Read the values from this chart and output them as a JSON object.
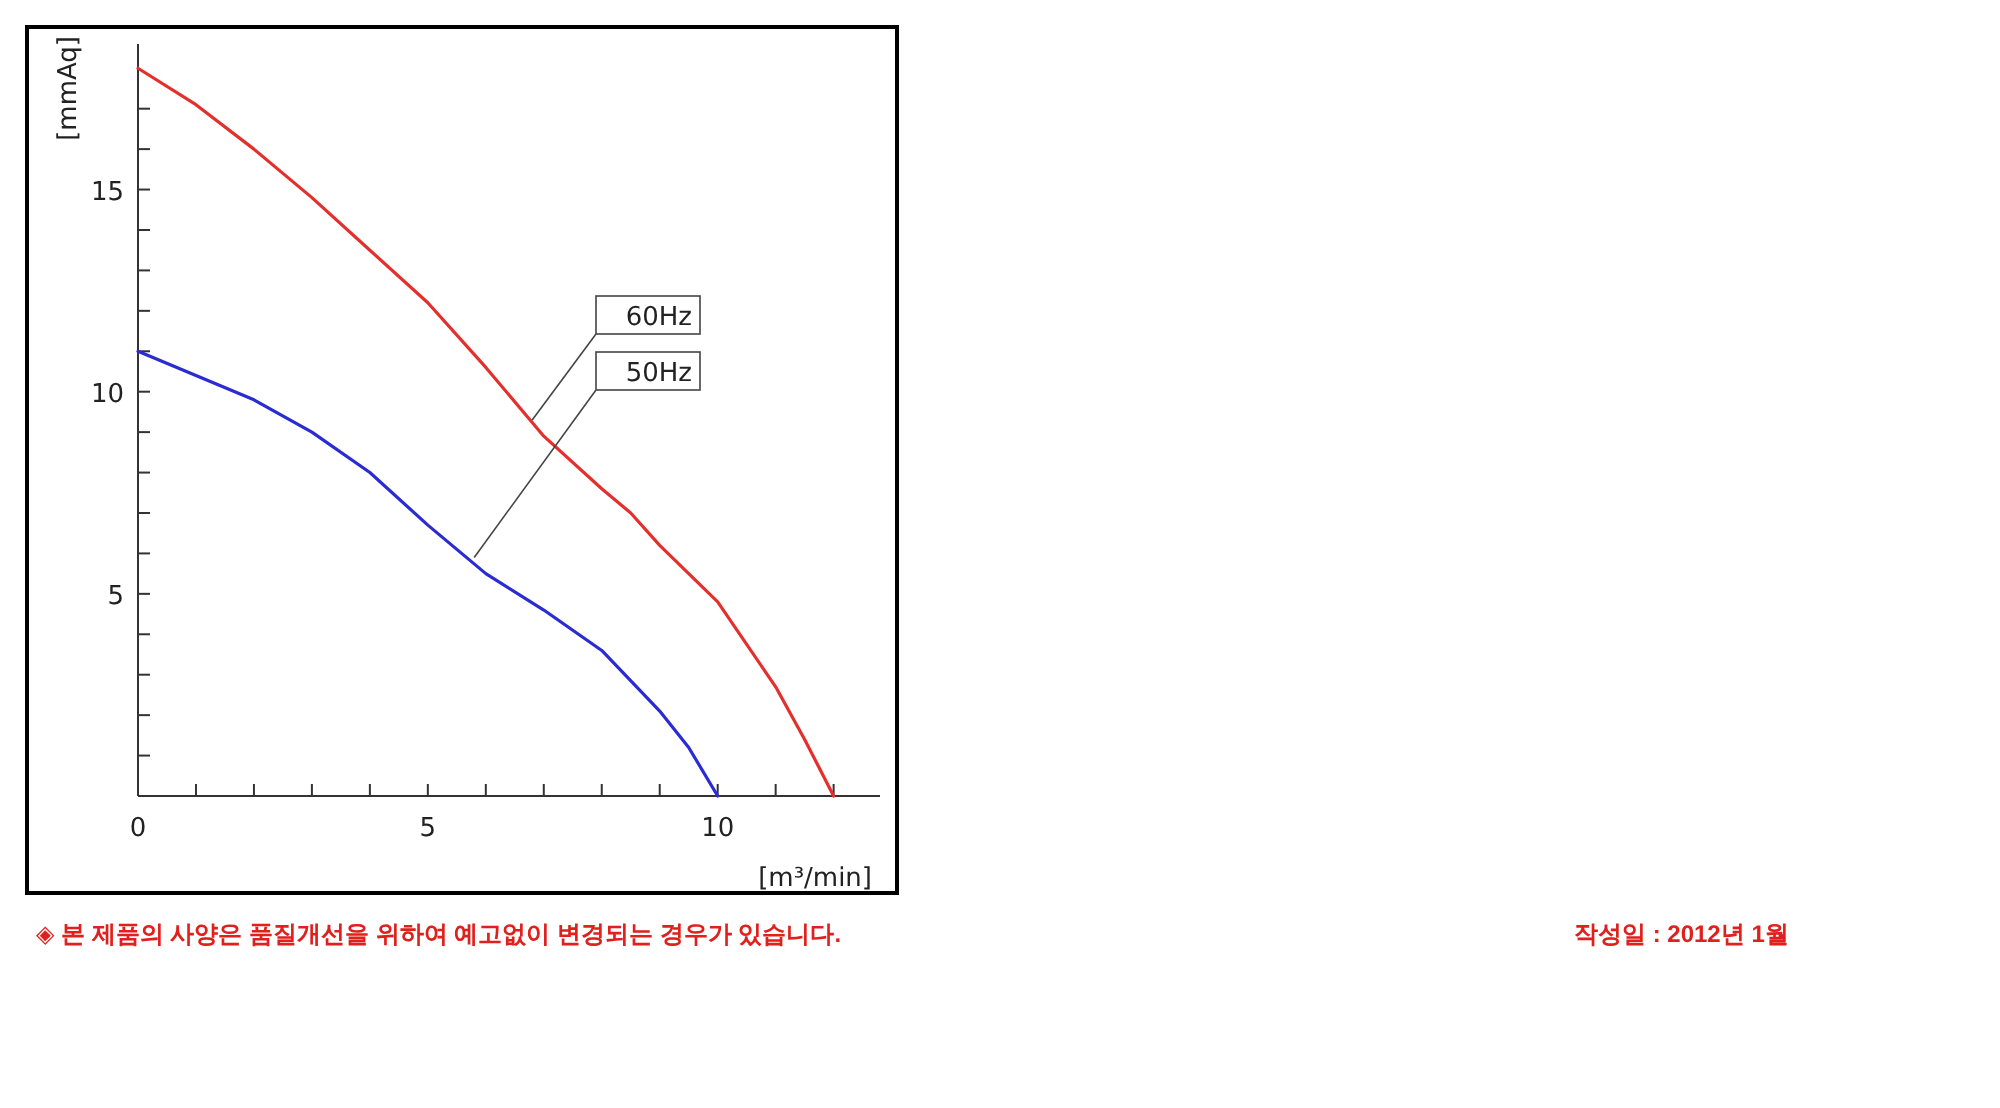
{
  "chart_data": {
    "type": "line",
    "xlabel": "[m³/min]",
    "ylabel": "[mmAq]",
    "xlim": [
      0,
      12.8
    ],
    "ylim": [
      0,
      18.6
    ],
    "xticks": [
      0,
      {
        "value": 1,
        "label": null
      },
      {
        "value": 2,
        "label": null
      },
      {
        "value": 3,
        "label": null
      },
      {
        "value": 4,
        "label": null
      },
      5,
      {
        "value": 6,
        "label": null
      },
      {
        "value": 7,
        "label": null
      },
      {
        "value": 8,
        "label": null
      },
      {
        "value": 9,
        "label": null
      },
      10,
      {
        "value": 11,
        "label": null
      },
      {
        "value": 12,
        "label": null
      }
    ],
    "yticks": [
      {
        "value": 1,
        "label": null
      },
      {
        "value": 2,
        "label": null
      },
      {
        "value": 3,
        "label": null
      },
      {
        "value": 4,
        "label": null
      },
      5,
      {
        "value": 6,
        "label": null
      },
      {
        "value": 7,
        "label": null
      },
      {
        "value": 8,
        "label": null
      },
      {
        "value": 9,
        "label": null
      },
      10,
      {
        "value": 11,
        "label": null
      },
      {
        "value": 12,
        "label": null
      },
      {
        "value": 13,
        "label": null
      },
      {
        "value": 14,
        "label": null
      },
      15,
      {
        "value": 16,
        "label": null
      },
      {
        "value": 17,
        "label": null
      }
    ],
    "series": [
      {
        "color": "#e3302c",
        "x": [
          0,
          1,
          2,
          3,
          4,
          5,
          6,
          7,
          8,
          8.5,
          9,
          10,
          11,
          11.5,
          12
        ],
        "values": [
          18,
          17.1,
          16,
          14.8,
          13.5,
          12.2,
          10.6,
          8.9,
          7.6,
          7,
          6.2,
          4.8,
          2.7,
          1.4,
          0
        ]
      },
      {
        "color": "#2b2bd3",
        "x": [
          0,
          1,
          2,
          3,
          4,
          5,
          6,
          7,
          8,
          9,
          9.5,
          10
        ],
        "values": [
          11,
          10.4,
          9.8,
          9,
          8,
          6.7,
          5.5,
          4.6,
          3.6,
          2.1,
          1.2,
          0
        ]
      }
    ],
    "annotations": [
      {
        "text": "60Hz",
        "x": 6.8,
        "y": 9.3
      },
      {
        "text": "50Hz",
        "x": 5.8,
        "y": 5.9
      },
      "◈ 본 제품의 사양은 품질개선을 위하여 예고없이 변경되는 경우가 있습니다.",
      "작성일 : 2012년 1월"
    ]
  }
}
